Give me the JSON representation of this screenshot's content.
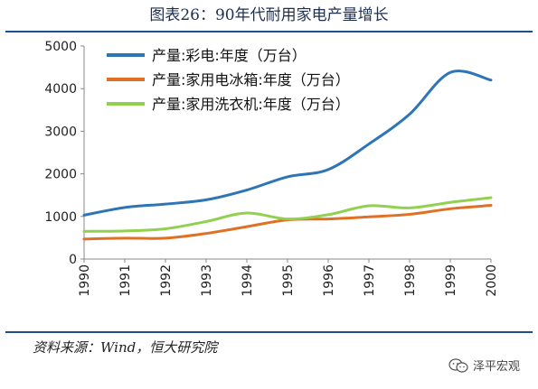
{
  "title": "图表26：90年代耐用家电产量增长",
  "source": "资料来源：Wind，恒大研究院",
  "watermark": "泽平宏观",
  "chart_data": {
    "type": "line",
    "x": [
      1990,
      1991,
      1992,
      1993,
      1994,
      1995,
      1996,
      1997,
      1998,
      1999,
      2000
    ],
    "ylim": [
      0,
      5000
    ],
    "yticks": [
      0,
      1000,
      2000,
      3000,
      4000,
      5000
    ],
    "grid": false,
    "legend_position": "top-left",
    "series": [
      {
        "name": "产量:彩电:年度（万台）",
        "color": "#2e75b6",
        "values": [
          1030,
          1210,
          1290,
          1390,
          1620,
          1930,
          2100,
          2700,
          3400,
          4380,
          4200
        ]
      },
      {
        "name": "产量:家用电冰箱:年度（万台）",
        "color": "#e07023",
        "values": [
          470,
          490,
          490,
          600,
          760,
          920,
          940,
          990,
          1050,
          1180,
          1260
        ]
      },
      {
        "name": "产量:家用洗衣机:年度（万台）",
        "color": "#92d050",
        "values": [
          650,
          660,
          710,
          880,
          1080,
          940,
          1040,
          1250,
          1200,
          1330,
          1440
        ]
      }
    ]
  }
}
